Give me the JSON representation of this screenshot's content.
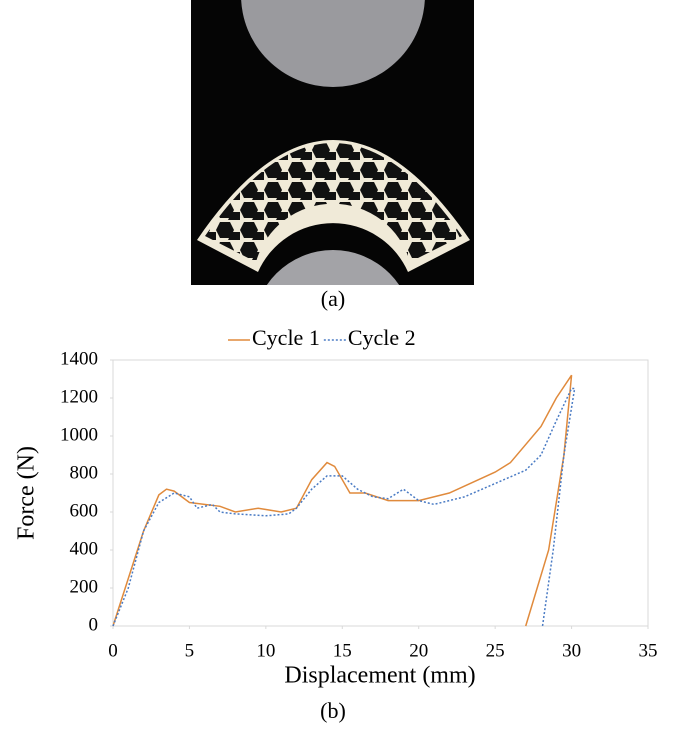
{
  "figure": {
    "panel_a_label": "(a)",
    "panel_b_label": "(b)"
  },
  "chart_data": {
    "type": "line",
    "x_label": "Displacement (mm)",
    "y_label": "Force (N)",
    "xlim": [
      0,
      35
    ],
    "xticks": [
      0,
      5,
      10,
      15,
      20,
      25,
      30,
      35
    ],
    "ylim": [
      0,
      1400
    ],
    "yticks": [
      0,
      200,
      400,
      600,
      800,
      1000,
      1200,
      1400
    ],
    "grid": false,
    "legend": "top",
    "series": [
      {
        "name": "Cycle 1",
        "color": "#e08a3c",
        "dash": "solid",
        "x": [
          0,
          1,
          2,
          3,
          3.5,
          4,
          5,
          7,
          8,
          9.5,
          11,
          12,
          13,
          14,
          14.5,
          15.5,
          16.5,
          18,
          20,
          22,
          25,
          26,
          28,
          29,
          30,
          29.5,
          28.5,
          27
        ],
        "values": [
          0,
          250,
          500,
          690,
          720,
          710,
          650,
          630,
          600,
          620,
          600,
          620,
          770,
          860,
          840,
          700,
          700,
          660,
          660,
          700,
          810,
          860,
          1050,
          1200,
          1320,
          900,
          400,
          0
        ]
      },
      {
        "name": "Cycle 2",
        "color": "#4a7bc4",
        "dash": "dotted",
        "x": [
          0,
          1,
          2,
          3,
          4,
          5,
          5.5,
          6.5,
          7,
          8,
          10,
          11.5,
          12,
          13,
          14,
          15,
          16,
          17,
          18,
          19,
          20,
          21,
          23,
          25,
          27,
          28,
          29,
          30,
          30.2,
          29.5,
          28.8,
          28.1
        ],
        "values": [
          0,
          200,
          500,
          650,
          700,
          680,
          620,
          640,
          600,
          590,
          580,
          590,
          620,
          720,
          790,
          790,
          720,
          680,
          670,
          720,
          660,
          640,
          680,
          750,
          820,
          900,
          1080,
          1250,
          1250,
          900,
          400,
          0
        ]
      }
    ]
  }
}
